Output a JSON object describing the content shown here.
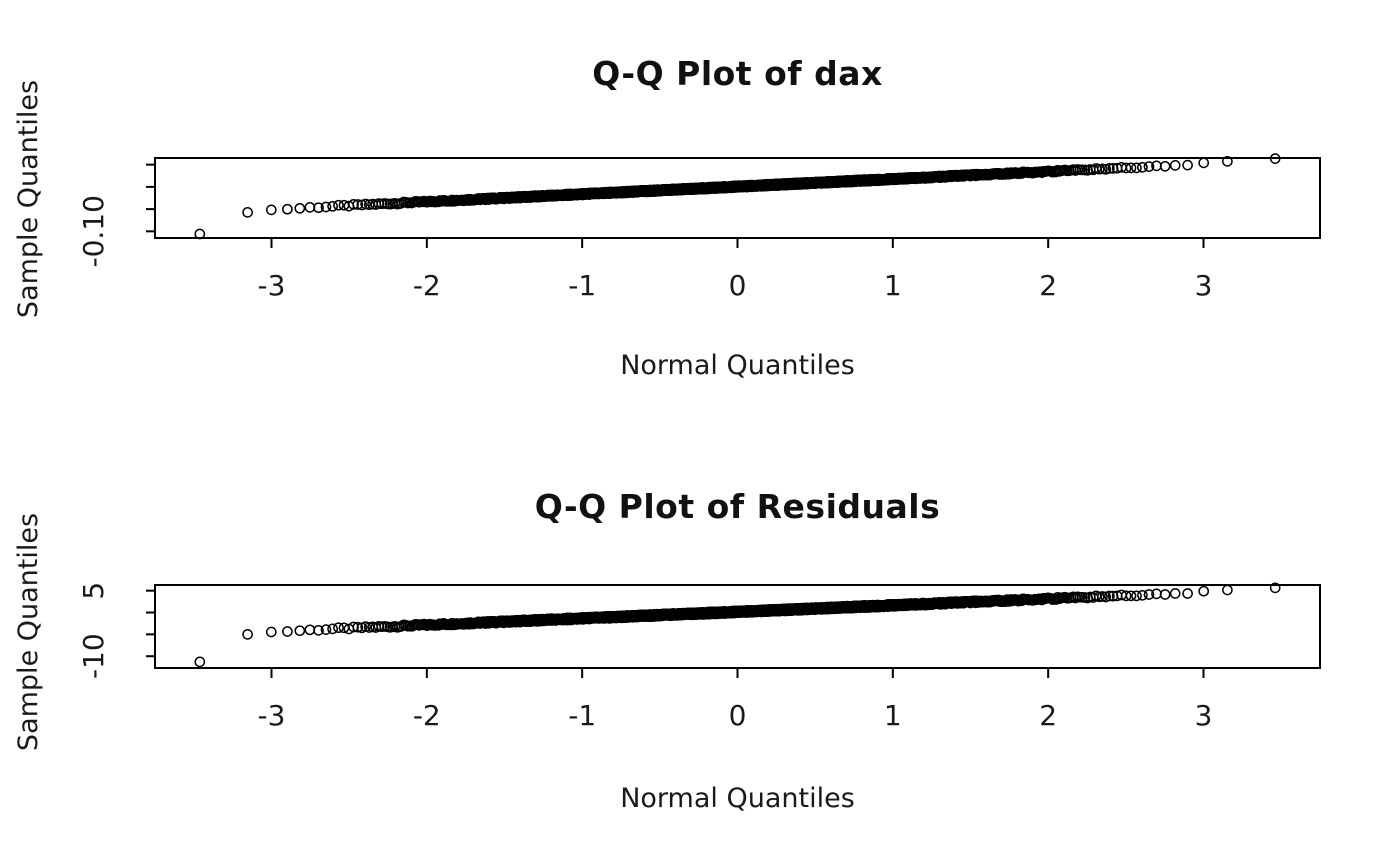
{
  "page": {
    "background": "#ffffff",
    "text_color": "#1a1a1a"
  },
  "chart_data": [
    {
      "type": "scatter",
      "variant": "qq-normal",
      "title": "Q-Q Plot of dax",
      "xlabel": "Normal Quantiles",
      "ylabel": "Sample Quantiles",
      "x_ticks": [
        -3,
        -2,
        -1,
        0,
        1,
        2,
        3
      ],
      "x_tick_labels": [
        "-3",
        "-2",
        "-1",
        "0",
        "1",
        "2",
        "3"
      ],
      "y_ticks": [
        0.05,
        0.0,
        -0.05,
        -0.1
      ],
      "y_tick_labels": [
        "",
        "",
        "",
        "-0.10"
      ],
      "xlim": [
        -3.75,
        3.75
      ],
      "ylim": [
        -0.115,
        0.065
      ],
      "grid": false,
      "legend": null,
      "marker": "open-circle",
      "point_color": "#000000",
      "axis_color": "#000000",
      "n_points": 1860,
      "qq_line": {
        "intercept": 0.0006,
        "slope": 0.017
      },
      "tail_flare": {
        "threshold": 2.5,
        "coef": 0.006
      },
      "jitter": 0.002,
      "outlier_min": -0.106
    },
    {
      "type": "scatter",
      "variant": "qq-normal",
      "title": "Q-Q Plot of Residuals",
      "xlabel": "Normal Quantiles",
      "ylabel": "Sample Quantiles",
      "x_ticks": [
        -3,
        -2,
        -1,
        0,
        1,
        2,
        3
      ],
      "x_tick_labels": [
        "-3",
        "-2",
        "-1",
        "0",
        "1",
        "2",
        "3"
      ],
      "y_ticks": [
        5,
        0,
        -5,
        -10
      ],
      "y_tick_labels": [
        "5",
        "",
        "",
        "-10"
      ],
      "xlim": [
        -3.75,
        3.75
      ],
      "ylim": [
        -12.7,
        6.3
      ],
      "grid": false,
      "legend": null,
      "marker": "open-circle",
      "point_color": "#000000",
      "axis_color": "#000000",
      "n_points": 1860,
      "qq_line": {
        "intercept": 0.15,
        "slope": 1.5
      },
      "tail_flare": {
        "threshold": 2.5,
        "coef": 0.5
      },
      "jitter": 0.25,
      "outlier_min": -11.3
    }
  ]
}
